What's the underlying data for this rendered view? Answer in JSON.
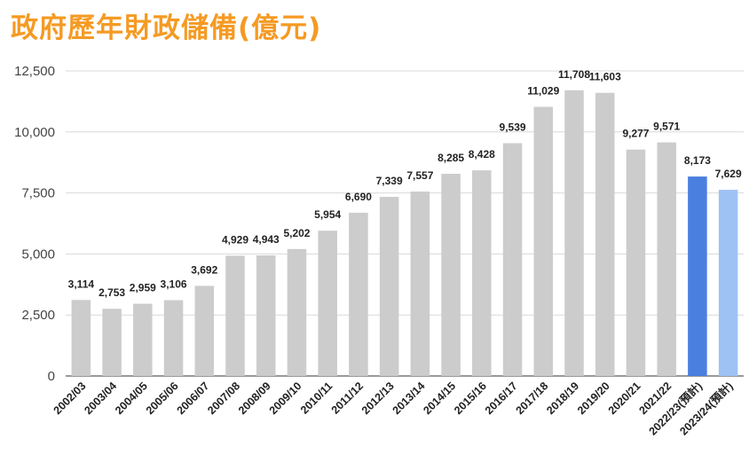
{
  "title": "政府歷年財政儲備(億元)",
  "colors": {
    "title": "#f59a23",
    "default_bar": "#cccccc",
    "bar_2022_23": "#4a7fe0",
    "bar_2023_24": "#9fc2f5",
    "grid": "#d9d9d9"
  },
  "chart_data": {
    "type": "bar",
    "title": "政府歷年財政儲備(億元)",
    "xlabel": "",
    "ylabel": "",
    "ylim": [
      0,
      12500
    ],
    "yticks": [
      0,
      2500,
      5000,
      7500,
      10000,
      12500
    ],
    "ytick_labels": [
      "0",
      "2,500",
      "5,000",
      "7,500",
      "10,000",
      "12,500"
    ],
    "grid": true,
    "categories": [
      "2002/03",
      "2003/04",
      "2004/05",
      "2005/06",
      "2006/07",
      "2007/08",
      "2008/09",
      "2009/10",
      "2010/11",
      "2011/12",
      "2012/13",
      "2013/14",
      "2014/15",
      "2015/16",
      "2016/17",
      "2017/18",
      "2018/19",
      "2019/20",
      "2020/21",
      "2021/22",
      "2022/23(預計)",
      "2023/24(預計)"
    ],
    "values": [
      3114,
      2753,
      2959,
      3106,
      3692,
      4929,
      4943,
      5202,
      5954,
      6690,
      7339,
      7557,
      8285,
      8428,
      9539,
      11029,
      11708,
      11603,
      9277,
      9571,
      8173,
      7629
    ],
    "value_labels": [
      "3,114",
      "2,753",
      "2,959",
      "3,106",
      "3,692",
      "4,929",
      "4,943",
      "5,202",
      "5,954",
      "6,690",
      "7,339",
      "7,557",
      "8,285",
      "8,428",
      "9,539",
      "11,029",
      "11,708",
      "11,603",
      "9,277",
      "9,571",
      "8,173",
      "7,629"
    ],
    "bar_colors": [
      "#cccccc",
      "#cccccc",
      "#cccccc",
      "#cccccc",
      "#cccccc",
      "#cccccc",
      "#cccccc",
      "#cccccc",
      "#cccccc",
      "#cccccc",
      "#cccccc",
      "#cccccc",
      "#cccccc",
      "#cccccc",
      "#cccccc",
      "#cccccc",
      "#cccccc",
      "#cccccc",
      "#cccccc",
      "#cccccc",
      "#4a7fe0",
      "#9fc2f5"
    ]
  }
}
